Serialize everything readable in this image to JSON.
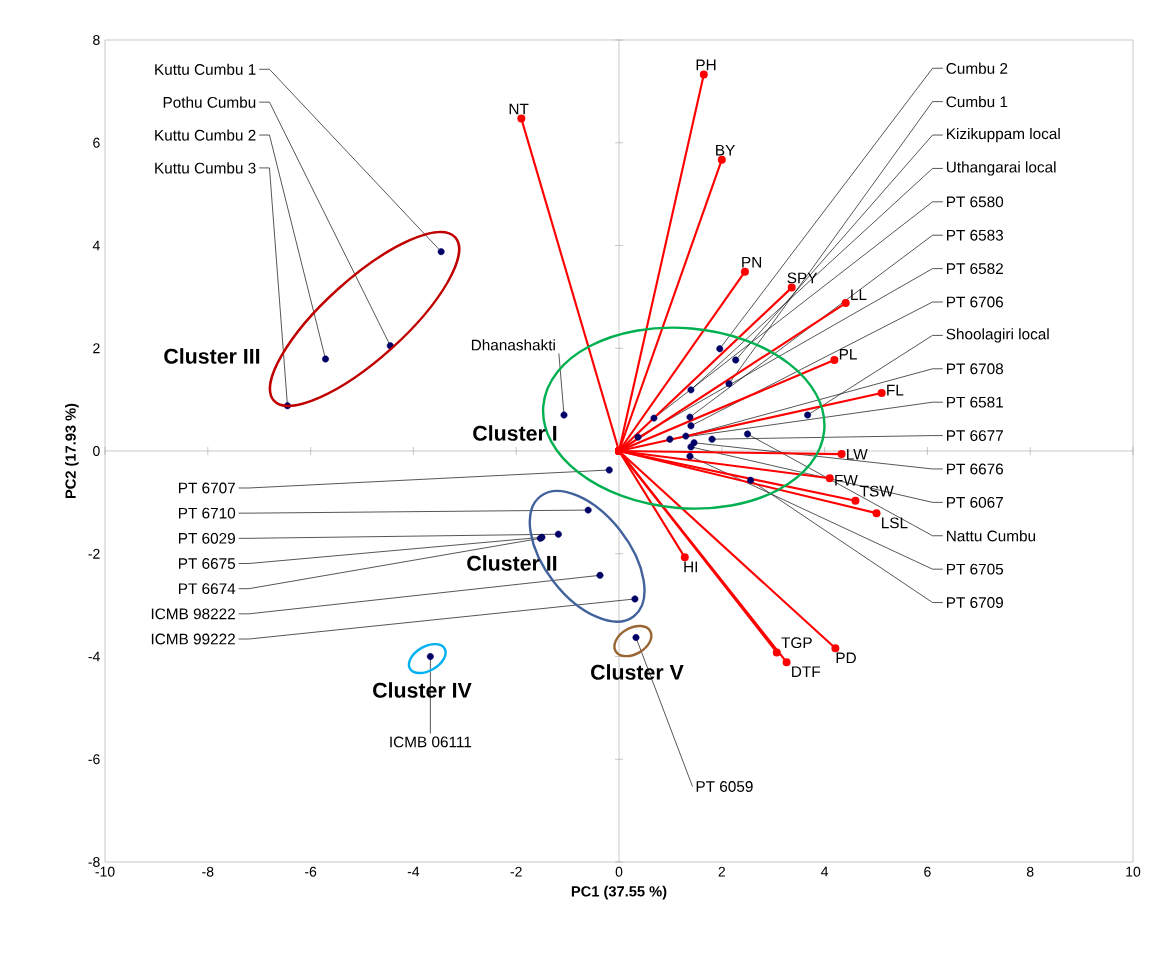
{
  "chart_data": {
    "type": "scatter",
    "xlabel": "PC1 (37.55 %)",
    "ylabel": "PC2 (17.93 %)",
    "xlim": [
      -10,
      10
    ],
    "ylim": [
      -8,
      8
    ],
    "xticks": [
      -10,
      -8,
      -6,
      -4,
      -2,
      0,
      2,
      4,
      6,
      8,
      10
    ],
    "yticks": [
      -8,
      -6,
      -4,
      -2,
      0,
      2,
      4,
      6,
      8
    ],
    "marker": "circle",
    "series": [
      {
        "type": "line",
        "name": "NT",
        "color": "#ff0000",
        "x": [
          0,
          -1.9
        ],
        "values": [
          0,
          6.47
        ]
      },
      {
        "type": "line",
        "name": "PH",
        "color": "#ff0000",
        "x": [
          0,
          1.65
        ],
        "values": [
          0,
          7.33
        ]
      },
      {
        "type": "line",
        "name": "BY",
        "color": "#ff0000",
        "x": [
          0,
          2.0
        ],
        "values": [
          0,
          5.67
        ]
      },
      {
        "type": "line",
        "name": "PN",
        "color": "#ff0000",
        "x": [
          0,
          2.45
        ],
        "values": [
          0,
          3.49
        ]
      },
      {
        "type": "line",
        "name": "SPY",
        "color": "#ff0000",
        "x": [
          0,
          3.36
        ],
        "values": [
          0,
          3.18
        ]
      },
      {
        "type": "line",
        "name": "LL",
        "color": "#ff0000",
        "x": [
          0,
          4.41
        ],
        "values": [
          0,
          2.88
        ]
      },
      {
        "type": "line",
        "name": "PL",
        "color": "#ff0000",
        "x": [
          0,
          4.19
        ],
        "values": [
          0,
          1.77
        ]
      },
      {
        "type": "line",
        "name": "FL",
        "color": "#ff0000",
        "x": [
          0,
          5.11
        ],
        "values": [
          0,
          1.13
        ]
      },
      {
        "type": "line",
        "name": "FW",
        "color": "#ff0000",
        "x": [
          0,
          4.1
        ],
        "values": [
          0,
          -0.53
        ]
      },
      {
        "type": "line",
        "name": "TSW",
        "color": "#ff0000",
        "x": [
          0,
          4.6
        ],
        "values": [
          0,
          -0.97
        ]
      },
      {
        "type": "line",
        "name": "LSL",
        "color": "#ff0000",
        "x": [
          0,
          5.01
        ],
        "values": [
          0,
          -1.21
        ]
      },
      {
        "type": "line",
        "name": "LW",
        "color": "#ff0000",
        "x": [
          0,
          4.33
        ],
        "values": [
          0,
          -0.06
        ]
      },
      {
        "type": "line",
        "name": "HI",
        "color": "#ff0000",
        "x": [
          0,
          1.28
        ],
        "values": [
          0,
          -2.07
        ]
      },
      {
        "type": "line",
        "name": "TGP",
        "color": "#ff0000",
        "x": [
          0,
          3.07
        ],
        "values": [
          0,
          -3.92
        ]
      },
      {
        "type": "line",
        "name": "DTF",
        "color": "#ff0000",
        "x": [
          0,
          3.26
        ],
        "values": [
          0,
          -4.11
        ]
      },
      {
        "type": "line",
        "name": "PD",
        "color": "#ff0000",
        "x": [
          0,
          4.21
        ],
        "values": [
          0,
          -3.84
        ]
      },
      {
        "color": "#000066",
        "x": [
          1.96,
          2.14,
          2.27,
          1.4,
          0.68,
          1.38,
          0.37,
          1.4,
          3.67,
          1.3,
          0.99,
          1.81,
          1.46,
          1.4,
          2.5,
          1.38,
          2.56,
          -3.46,
          -4.45,
          -5.71,
          -6.45,
          -1.07,
          -0.19,
          -0.6,
          -1.18,
          -1.5,
          -1.53,
          -0.37,
          0.31,
          0.33,
          -3.67
        ],
        "values": [
          1.99,
          1.31,
          1.77,
          1.19,
          0.64,
          0.66,
          0.27,
          0.49,
          0.7,
          0.29,
          0.23,
          0.23,
          0.16,
          0.08,
          0.33,
          -0.1,
          -0.57,
          3.88,
          2.05,
          1.79,
          0.88,
          0.7,
          -0.37,
          -1.15,
          -1.62,
          -1.68,
          -1.7,
          -2.42,
          -2.88,
          -3.63,
          -4.0
        ]
      }
    ],
    "annotations": [
      {
        "text": "Cumbu 2",
        "x": 1.96,
        "y": 1.99
      },
      {
        "text": "Cumbu 1",
        "x": 2.14,
        "y": 1.31
      },
      {
        "text": "Kizikuppam local",
        "x": 2.27,
        "y": 1.77
      },
      {
        "text": "Uthangarai local",
        "x": 1.4,
        "y": 1.19
      },
      {
        "text": "PT 6580",
        "x": 0.68,
        "y": 0.64
      },
      {
        "text": "PT 6583",
        "x": 1.38,
        "y": 0.66
      },
      {
        "text": "PT 6582",
        "x": 0.37,
        "y": 0.27
      },
      {
        "text": "PT 6706",
        "x": 1.4,
        "y": 0.49
      },
      {
        "text": "Shoolagiri local",
        "x": 3.67,
        "y": 0.7
      },
      {
        "text": "PT 6708",
        "x": 1.3,
        "y": 0.29
      },
      {
        "text": "PT 6581",
        "x": 0.99,
        "y": 0.23
      },
      {
        "text": "PT 6677",
        "x": 1.81,
        "y": 0.23
      },
      {
        "text": "PT 6676",
        "x": 1.46,
        "y": 0.16
      },
      {
        "text": "PT 6067",
        "x": 1.4,
        "y": 0.08
      },
      {
        "text": "Nattu Cumbu",
        "x": 2.5,
        "y": 0.33
      },
      {
        "text": "PT 6705",
        "x": 1.38,
        "y": -0.1
      },
      {
        "text": "PT 6709",
        "x": 2.56,
        "y": -0.57
      },
      {
        "text": "Kuttu Cumbu 1",
        "x": -3.46,
        "y": 3.88
      },
      {
        "text": "Pothu Cumbu",
        "x": -4.45,
        "y": 2.05
      },
      {
        "text": "Kuttu Cumbu 2",
        "x": -5.71,
        "y": 1.79
      },
      {
        "text": "Kuttu Cumbu 3",
        "x": -6.45,
        "y": 0.88
      },
      {
        "text": "Dhanashakti",
        "x": -1.07,
        "y": 0.7
      },
      {
        "text": "PT 6707",
        "x": -0.19,
        "y": -0.37
      },
      {
        "text": "PT 6710",
        "x": -0.6,
        "y": -1.15
      },
      {
        "text": "PT 6029",
        "x": -1.18,
        "y": -1.62
      },
      {
        "text": "PT 6675",
        "x": -1.5,
        "y": -1.68
      },
      {
        "text": "PT 6674",
        "x": -1.53,
        "y": -1.7
      },
      {
        "text": "ICMB 98222",
        "x": -0.37,
        "y": -2.42
      },
      {
        "text": "ICMB 99222",
        "x": 0.31,
        "y": -2.88
      },
      {
        "text": "PT 6059",
        "x": 0.33,
        "y": -3.63
      },
      {
        "text": "ICMB 06111",
        "x": -3.67,
        "y": -4.0
      },
      "Cluster I",
      "Cluster III",
      "Cluster II",
      "Cluster IV",
      "Cluster V"
    ]
  }
}
